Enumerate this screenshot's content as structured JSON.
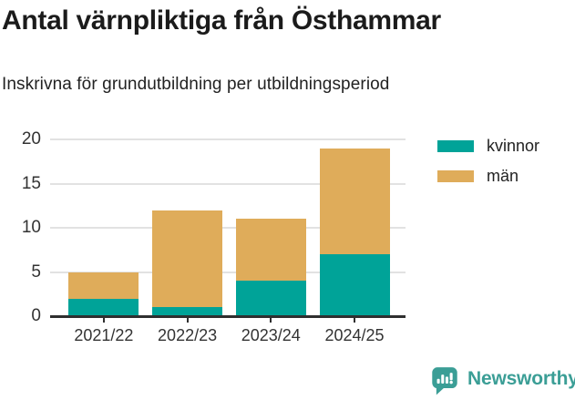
{
  "header": {
    "title": "Antal värnpliktiga från Östhammar",
    "subtitle": "Inskrivna för grundutbildning per utbildningsperiod"
  },
  "chart_data": {
    "type": "bar",
    "stacked": true,
    "categories": [
      "2021/22",
      "2022/23",
      "2023/24",
      "2024/25"
    ],
    "series": [
      {
        "name": "kvinnor",
        "color": "#00A398",
        "values": [
          2,
          1,
          4,
          7
        ]
      },
      {
        "name": "män",
        "color": "#DFAC5A",
        "values": [
          3,
          11,
          7,
          12
        ]
      }
    ],
    "title": "Antal värnpliktiga från Östhammar",
    "subtitle": "Inskrivna för grundutbildning per utbildningsperiod",
    "xlabel": "",
    "ylabel": "",
    "ylim": [
      0,
      20
    ],
    "yticks": [
      0,
      5,
      10,
      15,
      20
    ],
    "grid": true,
    "legend_position": "top-right"
  },
  "legend": {
    "items": [
      {
        "label": "kvinnor",
        "color": "#00A398"
      },
      {
        "label": "män",
        "color": "#DFAC5A"
      }
    ]
  },
  "footer": {
    "brand_name": "Newsworthy",
    "brand_color": "#3B9E96",
    "logo_icon": "bar-chart-speech-bubble-icon"
  },
  "style": {
    "axis_color": "#2F2F2F",
    "grid_color": "#E2E2E2",
    "tick_label_color": "#333333",
    "background": "#FFFFFF"
  }
}
